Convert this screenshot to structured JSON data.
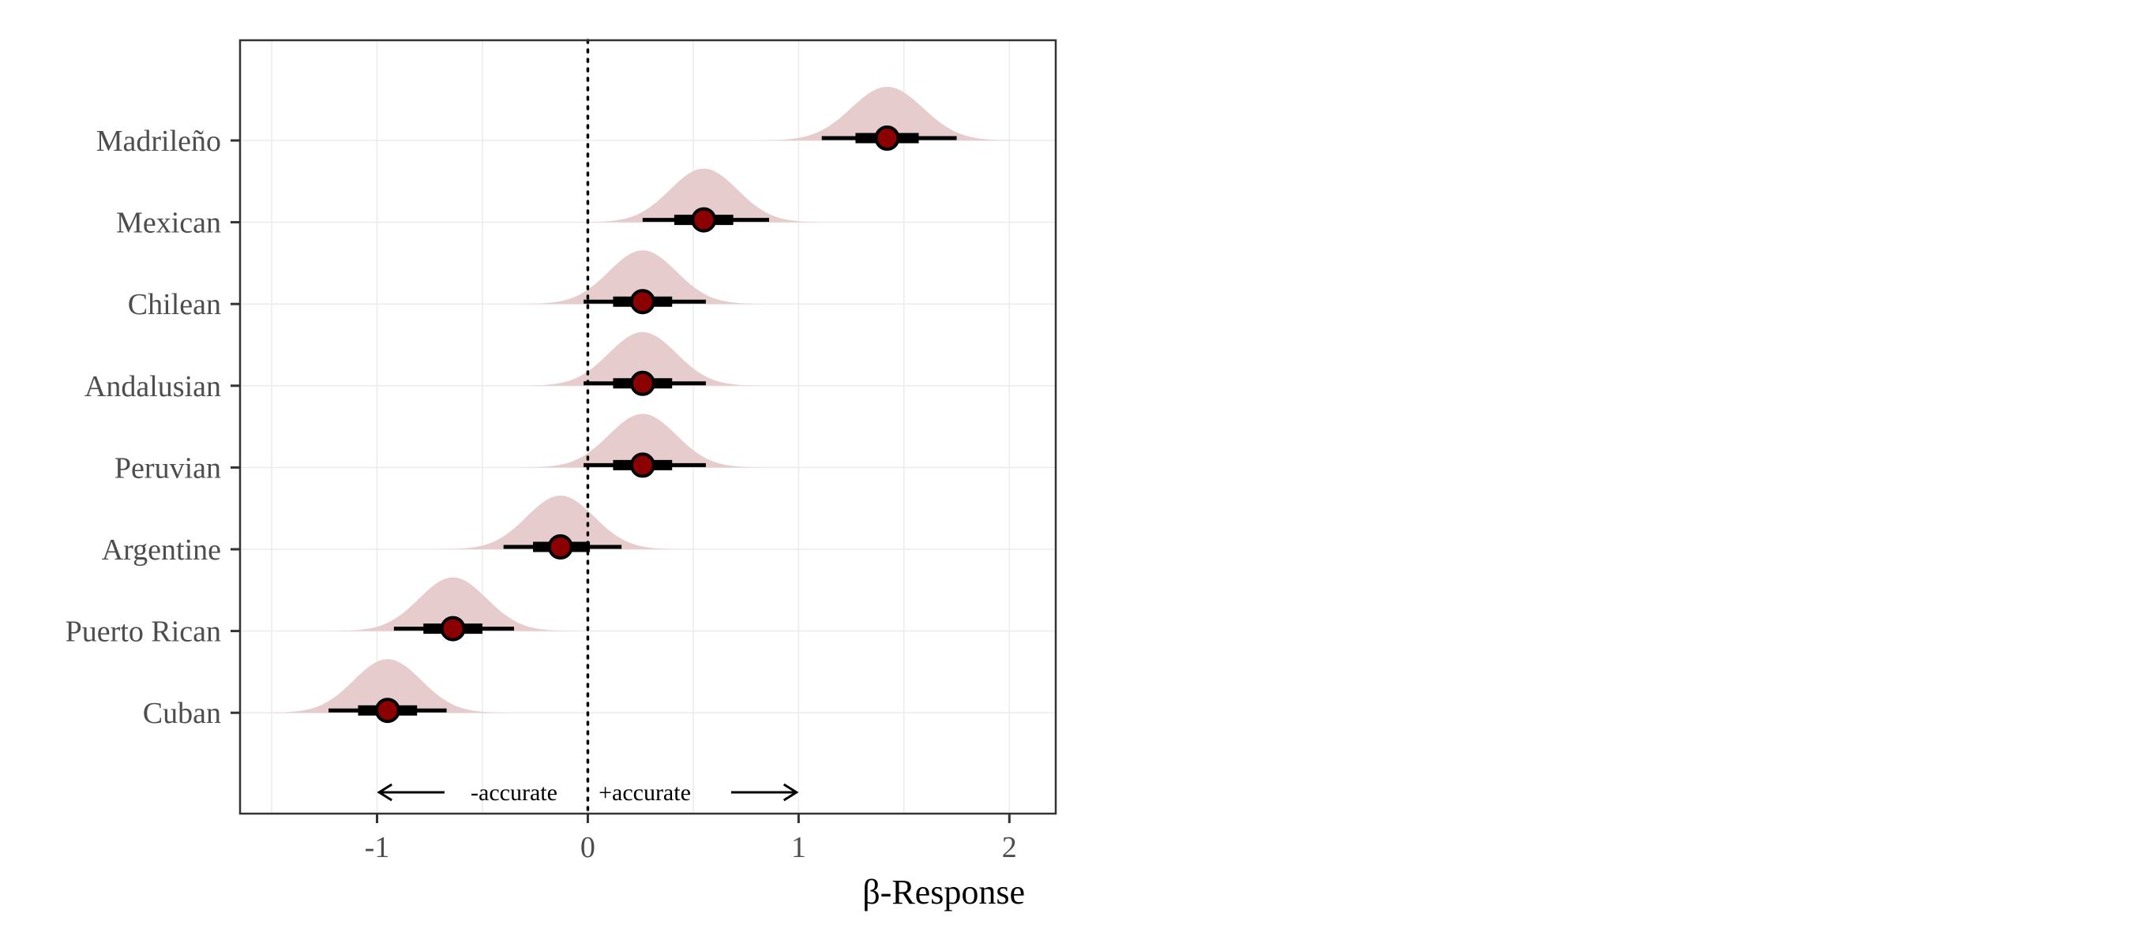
{
  "chart_data": {
    "type": "scatter",
    "subtype": "posterior interval plot with density",
    "xlabel": "β-Response",
    "xlim": [
      -1.65,
      2.22
    ],
    "xticks": [
      -1,
      0,
      1,
      2
    ],
    "xtick_labels": [
      "-1",
      "0",
      "1",
      "2"
    ],
    "grid": true,
    "reference_line": {
      "x": 0,
      "style": "dotted"
    },
    "categories": [
      "Madrileño",
      "Mexican",
      "Chilean",
      "Andalusian",
      "Peruvian",
      "Argentine",
      "Puerto Rican",
      "Cuban"
    ],
    "series": [
      {
        "category": "Madrileño",
        "median": 1.42,
        "inner": [
          1.27,
          1.57
        ],
        "outer": [
          1.11,
          1.75
        ],
        "density_sd": 0.17
      },
      {
        "category": "Mexican",
        "median": 0.55,
        "inner": [
          0.41,
          0.69
        ],
        "outer": [
          0.26,
          0.86
        ],
        "density_sd": 0.16
      },
      {
        "category": "Chilean",
        "median": 0.26,
        "inner": [
          0.12,
          0.4
        ],
        "outer": [
          -0.02,
          0.56
        ],
        "density_sd": 0.16
      },
      {
        "category": "Andalusian",
        "median": 0.26,
        "inner": [
          0.12,
          0.4
        ],
        "outer": [
          -0.02,
          0.56
        ],
        "density_sd": 0.16
      },
      {
        "category": "Peruvian",
        "median": 0.26,
        "inner": [
          0.12,
          0.4
        ],
        "outer": [
          -0.02,
          0.56
        ],
        "density_sd": 0.16
      },
      {
        "category": "Argentine",
        "median": -0.13,
        "inner": [
          -0.26,
          0.01
        ],
        "outer": [
          -0.4,
          0.16
        ],
        "density_sd": 0.16
      },
      {
        "category": "Puerto Rican",
        "median": -0.64,
        "inner": [
          -0.78,
          -0.5
        ],
        "outer": [
          -0.92,
          -0.35
        ],
        "density_sd": 0.16
      },
      {
        "category": "Cuban",
        "median": -0.95,
        "inner": [
          -1.09,
          -0.81
        ],
        "outer": [
          -1.23,
          -0.67
        ],
        "density_sd": 0.16
      }
    ],
    "annotations": [
      {
        "text": "-accurate",
        "arrow_from": -0.68,
        "arrow_to": -0.99
      },
      {
        "text": "+accurate",
        "arrow_from": 0.68,
        "arrow_to": 0.99
      }
    ],
    "colors": {
      "density_fill": "#e6cccc",
      "point_fill": "#8b0000",
      "interval": "#000000",
      "grid": "#ebebeb",
      "panel_border": "#333333"
    }
  }
}
